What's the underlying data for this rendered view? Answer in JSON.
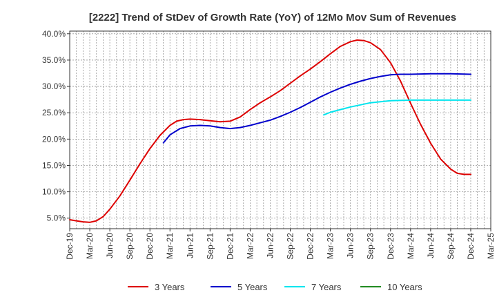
{
  "chart_data": {
    "type": "line",
    "title": "[2222]  Trend of StDev of Growth Rate (YoY) of 12Mo Mov Sum of Revenues",
    "xlabel": "",
    "ylabel": "",
    "ylim": [
      3.0,
      40.5
    ],
    "y_ticks": [
      5,
      10,
      15,
      20,
      25,
      30,
      35,
      40
    ],
    "y_tick_labels": [
      "5.0%",
      "10.0%",
      "15.0%",
      "20.0%",
      "25.0%",
      "30.0%",
      "35.0%",
      "40.0%"
    ],
    "x_tick_labels": [
      "Dec-19",
      "Mar-20",
      "Jun-20",
      "Sep-20",
      "Dec-20",
      "Mar-21",
      "Jun-21",
      "Sep-21",
      "Dec-21",
      "Mar-22",
      "Jun-22",
      "Sep-22",
      "Dec-22",
      "Mar-23",
      "Jun-23",
      "Sep-23",
      "Dec-23",
      "Mar-24",
      "Jun-24",
      "Sep-24",
      "Dec-24",
      "Mar-25"
    ],
    "x_range_quarters": [
      0,
      21
    ],
    "grid": true,
    "legend_position": "bottom",
    "series": [
      {
        "name": "3 Years",
        "color": "#dd0000",
        "points": [
          [
            0,
            4.7
          ],
          [
            0.33,
            4.5
          ],
          [
            0.67,
            4.3
          ],
          [
            1,
            4.2
          ],
          [
            1.33,
            4.5
          ],
          [
            1.67,
            5.3
          ],
          [
            2,
            6.7
          ],
          [
            2.5,
            9.2
          ],
          [
            3,
            12.2
          ],
          [
            3.5,
            15.3
          ],
          [
            4,
            18.2
          ],
          [
            4.5,
            20.7
          ],
          [
            5,
            22.6
          ],
          [
            5.33,
            23.4
          ],
          [
            5.67,
            23.7
          ],
          [
            6,
            23.8
          ],
          [
            6.5,
            23.7
          ],
          [
            7,
            23.5
          ],
          [
            7.5,
            23.3
          ],
          [
            8,
            23.4
          ],
          [
            8.5,
            24.2
          ],
          [
            9,
            25.6
          ],
          [
            9.5,
            26.9
          ],
          [
            10,
            28.0
          ],
          [
            10.5,
            29.2
          ],
          [
            11,
            30.6
          ],
          [
            11.5,
            32.0
          ],
          [
            12,
            33.3
          ],
          [
            12.5,
            34.7
          ],
          [
            13,
            36.2
          ],
          [
            13.5,
            37.6
          ],
          [
            14,
            38.5
          ],
          [
            14.33,
            38.8
          ],
          [
            14.67,
            38.7
          ],
          [
            15,
            38.3
          ],
          [
            15.5,
            37.0
          ],
          [
            16,
            34.5
          ],
          [
            16.5,
            31.0
          ],
          [
            17,
            26.8
          ],
          [
            17.5,
            22.8
          ],
          [
            18,
            19.2
          ],
          [
            18.5,
            16.2
          ],
          [
            19,
            14.3
          ],
          [
            19.33,
            13.5
          ],
          [
            19.67,
            13.3
          ],
          [
            20,
            13.3
          ]
        ]
      },
      {
        "name": "5 Years",
        "color": "#0000cc",
        "points": [
          [
            4.67,
            19.3
          ],
          [
            5,
            20.8
          ],
          [
            5.5,
            22.0
          ],
          [
            6,
            22.5
          ],
          [
            6.5,
            22.6
          ],
          [
            7,
            22.5
          ],
          [
            7.5,
            22.2
          ],
          [
            8,
            22.0
          ],
          [
            8.5,
            22.2
          ],
          [
            9,
            22.6
          ],
          [
            9.5,
            23.1
          ],
          [
            10,
            23.6
          ],
          [
            10.5,
            24.3
          ],
          [
            11,
            25.1
          ],
          [
            11.5,
            26.0
          ],
          [
            12,
            27.0
          ],
          [
            12.5,
            28.0
          ],
          [
            13,
            28.9
          ],
          [
            13.5,
            29.7
          ],
          [
            14,
            30.4
          ],
          [
            14.5,
            31.0
          ],
          [
            15,
            31.5
          ],
          [
            15.5,
            31.9
          ],
          [
            16,
            32.2
          ],
          [
            16.5,
            32.3
          ],
          [
            17,
            32.3
          ],
          [
            18,
            32.4
          ],
          [
            19,
            32.4
          ],
          [
            20,
            32.3
          ]
        ]
      },
      {
        "name": "7 Years",
        "color": "#00e5ee",
        "points": [
          [
            12.67,
            24.6
          ],
          [
            13,
            25.1
          ],
          [
            13.5,
            25.6
          ],
          [
            14,
            26.1
          ],
          [
            14.5,
            26.5
          ],
          [
            15,
            26.9
          ],
          [
            15.5,
            27.1
          ],
          [
            16,
            27.3
          ],
          [
            17,
            27.4
          ],
          [
            18,
            27.4
          ],
          [
            19,
            27.4
          ],
          [
            20,
            27.4
          ]
        ]
      },
      {
        "name": "10 Years",
        "color": "#228b22",
        "points": []
      }
    ]
  }
}
